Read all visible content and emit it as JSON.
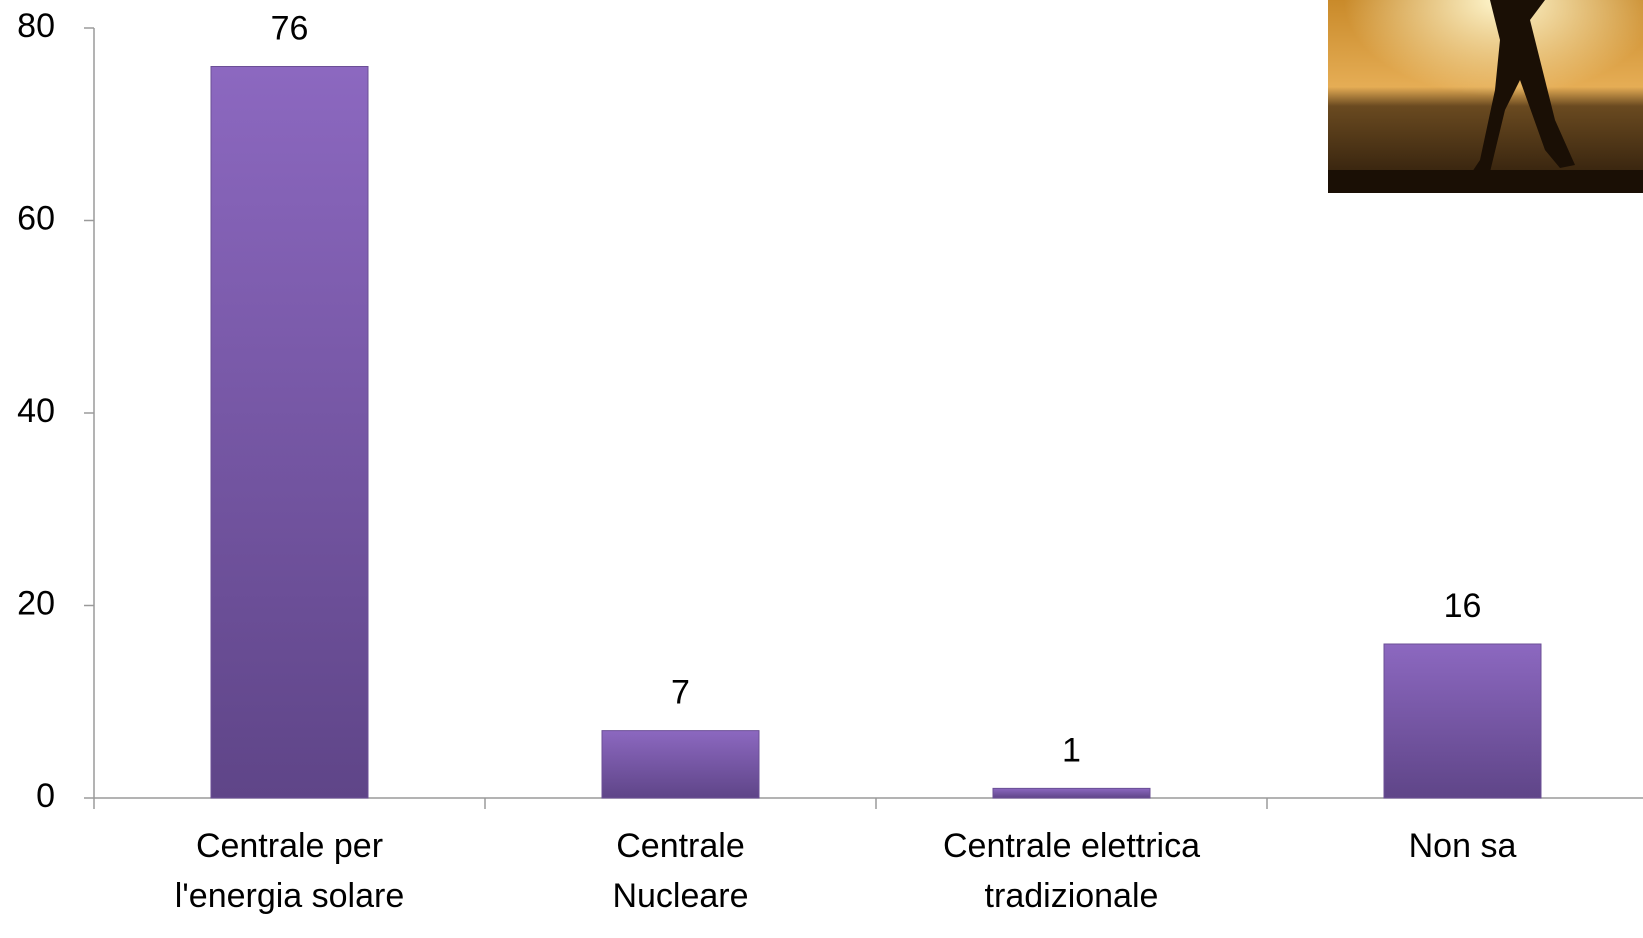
{
  "chart_data": {
    "type": "bar",
    "categories": [
      "Centrale per\nl'energia solare",
      "Centrale\nNucleare",
      "Centrale elettrica\ntradizionale",
      "Non sa"
    ],
    "values": [
      76,
      7,
      1,
      16
    ],
    "color": "#7a58aa",
    "ylim": [
      0,
      80
    ],
    "yticks": [
      0,
      20,
      40,
      60,
      80
    ],
    "grid": false
  }
}
